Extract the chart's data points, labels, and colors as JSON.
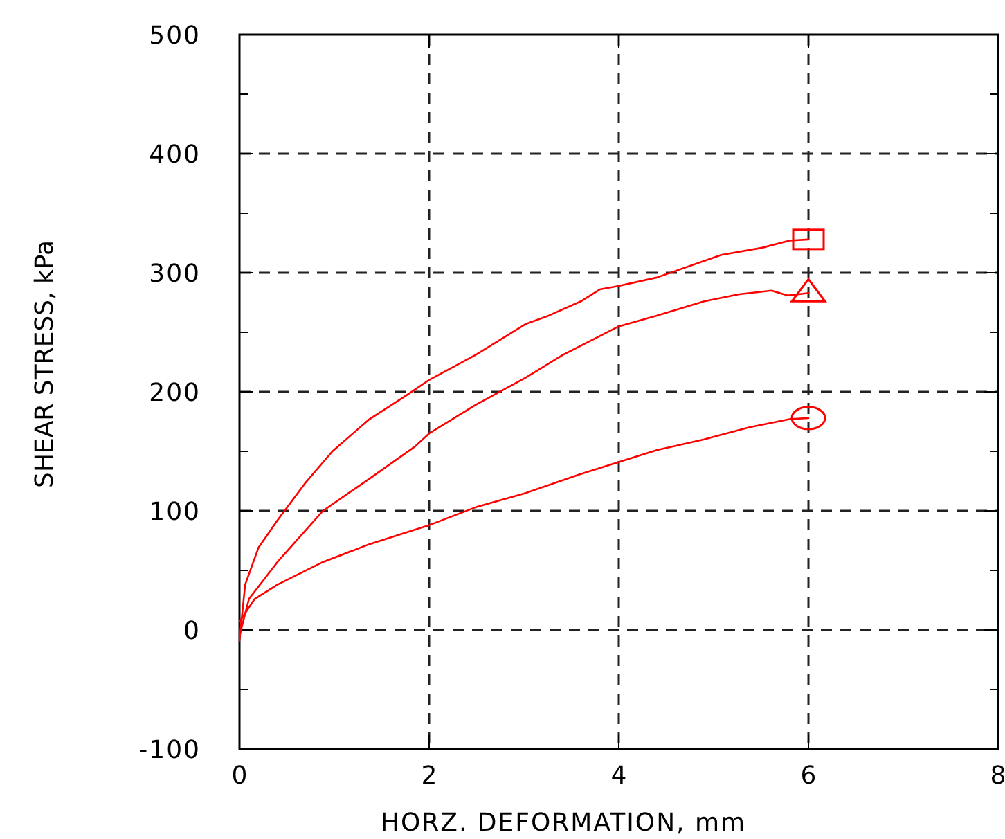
{
  "chart_data": {
    "type": "line",
    "xlabel": "HORZ. DEFORMATION, mm",
    "ylabel": "SHEAR STRESS, kPa",
    "xlim": [
      0,
      8
    ],
    "xticks": [
      0,
      2,
      4,
      6,
      8
    ],
    "ylim": [
      -100,
      500
    ],
    "yticks": [
      -100,
      {
        "value": -50,
        "label": null
      },
      0,
      {
        "value": 50,
        "label": null
      },
      100,
      {
        "value": 150,
        "label": null
      },
      200,
      {
        "value": 250,
        "label": null
      },
      300,
      {
        "value": 350,
        "label": null
      },
      400,
      {
        "value": 450,
        "label": null
      },
      500
    ],
    "grid": true,
    "line_style": "solid",
    "series": [
      {
        "color": "#ff0000",
        "x": [
          0,
          0.06,
          0.2,
          0.4,
          0.69,
          0.98,
          1.37,
          1.76,
          2,
          2.49,
          3.02,
          3.26,
          3.6,
          3.8,
          4,
          4.4,
          5.08,
          5.51,
          5.8,
          6
        ],
        "values": [
          -9,
          38,
          69,
          92,
          123,
          150,
          177,
          197,
          210,
          231,
          257,
          264,
          276,
          286,
          289,
          296,
          315,
          321,
          327,
          328
        ]
      },
      {
        "color": "#ff0000",
        "x": [
          0,
          0.1,
          0.4,
          0.88,
          1.37,
          1.85,
          2,
          2.49,
          3.02,
          3.41,
          4,
          4.4,
          4.9,
          5.27,
          5.61,
          5.78,
          5.9,
          6
        ],
        "values": [
          -5,
          26,
          57,
          100,
          127,
          154,
          165,
          189,
          212,
          231,
          255,
          264,
          276,
          282,
          285,
          281,
          282,
          283
        ]
      },
      {
        "color": "#ff0000",
        "x": [
          0,
          0.16,
          0.4,
          0.88,
          1.37,
          2,
          2.49,
          3.02,
          3.6,
          4,
          4.4,
          4.9,
          5.37,
          5.8,
          6
        ],
        "values": [
          7,
          26,
          38,
          57,
          72,
          88,
          103,
          115,
          131,
          141,
          151,
          160,
          170,
          177,
          178
        ]
      }
    ]
  }
}
